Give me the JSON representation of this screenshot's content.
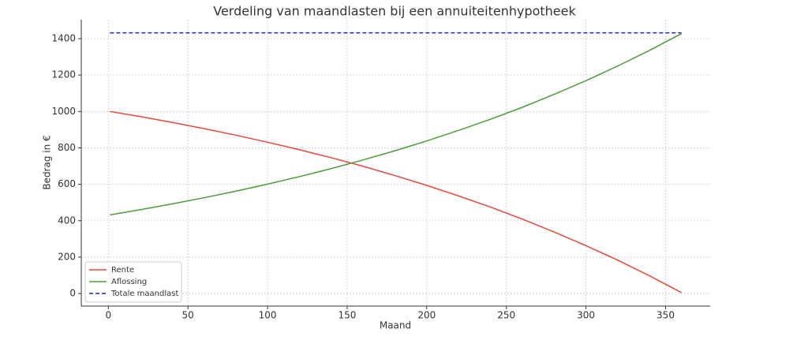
{
  "chart_data": {
    "type": "line",
    "title": "Verdeling van maandlasten bij een annuiteitenhypotheek",
    "xlabel": "Maand",
    "ylabel": "Bedrag in €",
    "x": [
      1,
      20,
      40,
      60,
      80,
      100,
      120,
      140,
      160,
      180,
      200,
      220,
      240,
      260,
      280,
      300,
      320,
      340,
      360
    ],
    "series": [
      {
        "name": "Rente",
        "color": "#e8463a",
        "dash": false,
        "values": [
          1000,
          972,
          940,
          906,
          870,
          831,
          790,
          746,
          699,
          648,
          594,
          536,
          475,
          409,
          338,
          263,
          183,
          97,
          5
        ]
      },
      {
        "name": "Aflossing",
        "color": "#4c9a3a",
        "dash": false,
        "values": [
          432,
          460,
          492,
          526,
          562,
          601,
          642,
          686,
          734,
          784,
          838,
          896,
          957,
          1023,
          1094,
          1169,
          1250,
          1336,
          1428
        ]
      },
      {
        "name": "Totale maandlast",
        "color": "#2222c8",
        "dash": true,
        "values": [
          1432,
          1432,
          1432,
          1432,
          1432,
          1432,
          1432,
          1432,
          1432,
          1432,
          1432,
          1432,
          1432,
          1432,
          1432,
          1432,
          1432,
          1432,
          1432
        ]
      }
    ],
    "xlim": [
      -17,
      378
    ],
    "ylim": [
      -69,
      1504
    ],
    "xticks": [
      0,
      50,
      100,
      150,
      200,
      250,
      300,
      350
    ],
    "yticks": [
      0,
      200,
      400,
      600,
      800,
      1000,
      1200,
      1400
    ],
    "grid": true,
    "legend": "lower left"
  }
}
